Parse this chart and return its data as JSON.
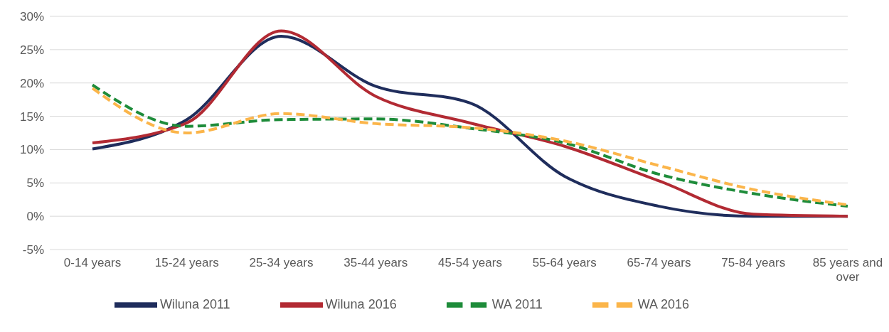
{
  "chart_data": {
    "type": "line",
    "categories": [
      "0-14 years",
      "15-24 years",
      "25-34 years",
      "35-44 years",
      "45-54 years",
      "55-64 years",
      "65-74 years",
      "75-84 years",
      "85 years and over"
    ],
    "series": [
      {
        "name": "Wiluna 2011",
        "color": "#1f2d5c",
        "line_style": "solid",
        "values": [
          10.1,
          14.5,
          27.0,
          19.5,
          17.0,
          6.0,
          1.5,
          0,
          0
        ]
      },
      {
        "name": "Wiluna 2016",
        "color": "#b22a33",
        "line_style": "solid",
        "values": [
          11.0,
          14.0,
          27.8,
          18.0,
          14.0,
          10.5,
          5.3,
          0.3,
          0
        ]
      },
      {
        "name": "WA 2011",
        "color": "#1e8c3a",
        "line_style": "dashed",
        "values": [
          19.7,
          13.5,
          14.5,
          14.6,
          13.2,
          11.0,
          6.3,
          3.4,
          1.5
        ]
      },
      {
        "name": "WA 2016",
        "color": "#fbb54a",
        "line_style": "dashed",
        "values": [
          19.2,
          12.5,
          15.4,
          13.9,
          13.3,
          11.3,
          7.6,
          4.0,
          1.7
        ]
      }
    ],
    "ylim": [
      -5,
      30
    ],
    "yticks": [
      {
        "value": -5,
        "label": "-5%"
      },
      {
        "value": 0,
        "label": "0%"
      },
      {
        "value": 5,
        "label": "5%"
      },
      {
        "value": 10,
        "label": "10%"
      },
      {
        "value": 15,
        "label": "15%"
      },
      {
        "value": 20,
        "label": "20%"
      },
      {
        "value": 25,
        "label": "25%"
      },
      {
        "value": 30,
        "label": "30%"
      }
    ],
    "grid": "y",
    "legend": "bottom",
    "marker": "none"
  }
}
